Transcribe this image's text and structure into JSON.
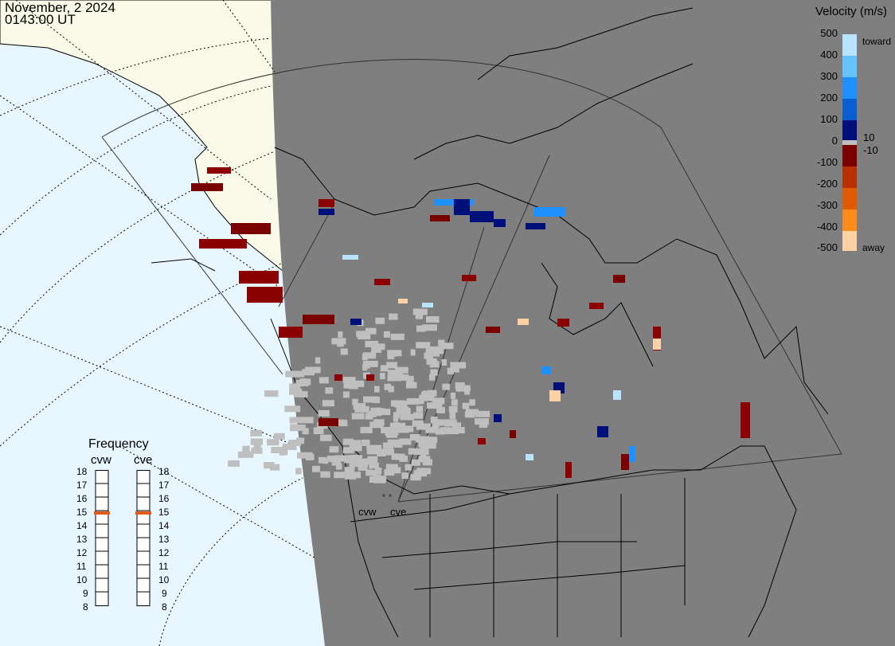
{
  "header": {
    "date": "November, 2 2024",
    "time": "0143:00 UT"
  },
  "velocity_scale": {
    "title": "Velocity (m/s)",
    "positive_labels": [
      "500",
      "400",
      "300",
      "200",
      "100",
      "10"
    ],
    "zero_label": "0",
    "negative_labels": [
      "-10",
      "-100",
      "-200",
      "-300",
      "-400",
      "-500"
    ],
    "toward_label": "toward",
    "away_label": "away",
    "colors": {
      "toward": [
        "#b8e4ff",
        "#66c2ff",
        "#1e90ff",
        "#0a5fd0",
        "#0b3aa8",
        "#00107a"
      ],
      "away": [
        "#7a0000",
        "#8b0000",
        "#b83000",
        "#e05a00",
        "#ff8c1a",
        "#ffd2a6"
      ],
      "ground": "#bfbfbf"
    }
  },
  "frequency_panel": {
    "title": "Frequency",
    "radars": [
      {
        "name": "cvw",
        "value_mhz": 15
      },
      {
        "name": "cve",
        "value_mhz": 15
      }
    ],
    "ticks": [
      "18",
      "17",
      "16",
      "15",
      "14",
      "13",
      "12",
      "11",
      "10",
      "9",
      "8"
    ]
  },
  "map_labels": {
    "radar_cvw": "cvw",
    "radar_cve": "cve"
  },
  "colors": {
    "night": "#7f7f7f",
    "land_day": "#fafae8",
    "ocean_day": "#e8f6ff",
    "line": "#000000"
  }
}
